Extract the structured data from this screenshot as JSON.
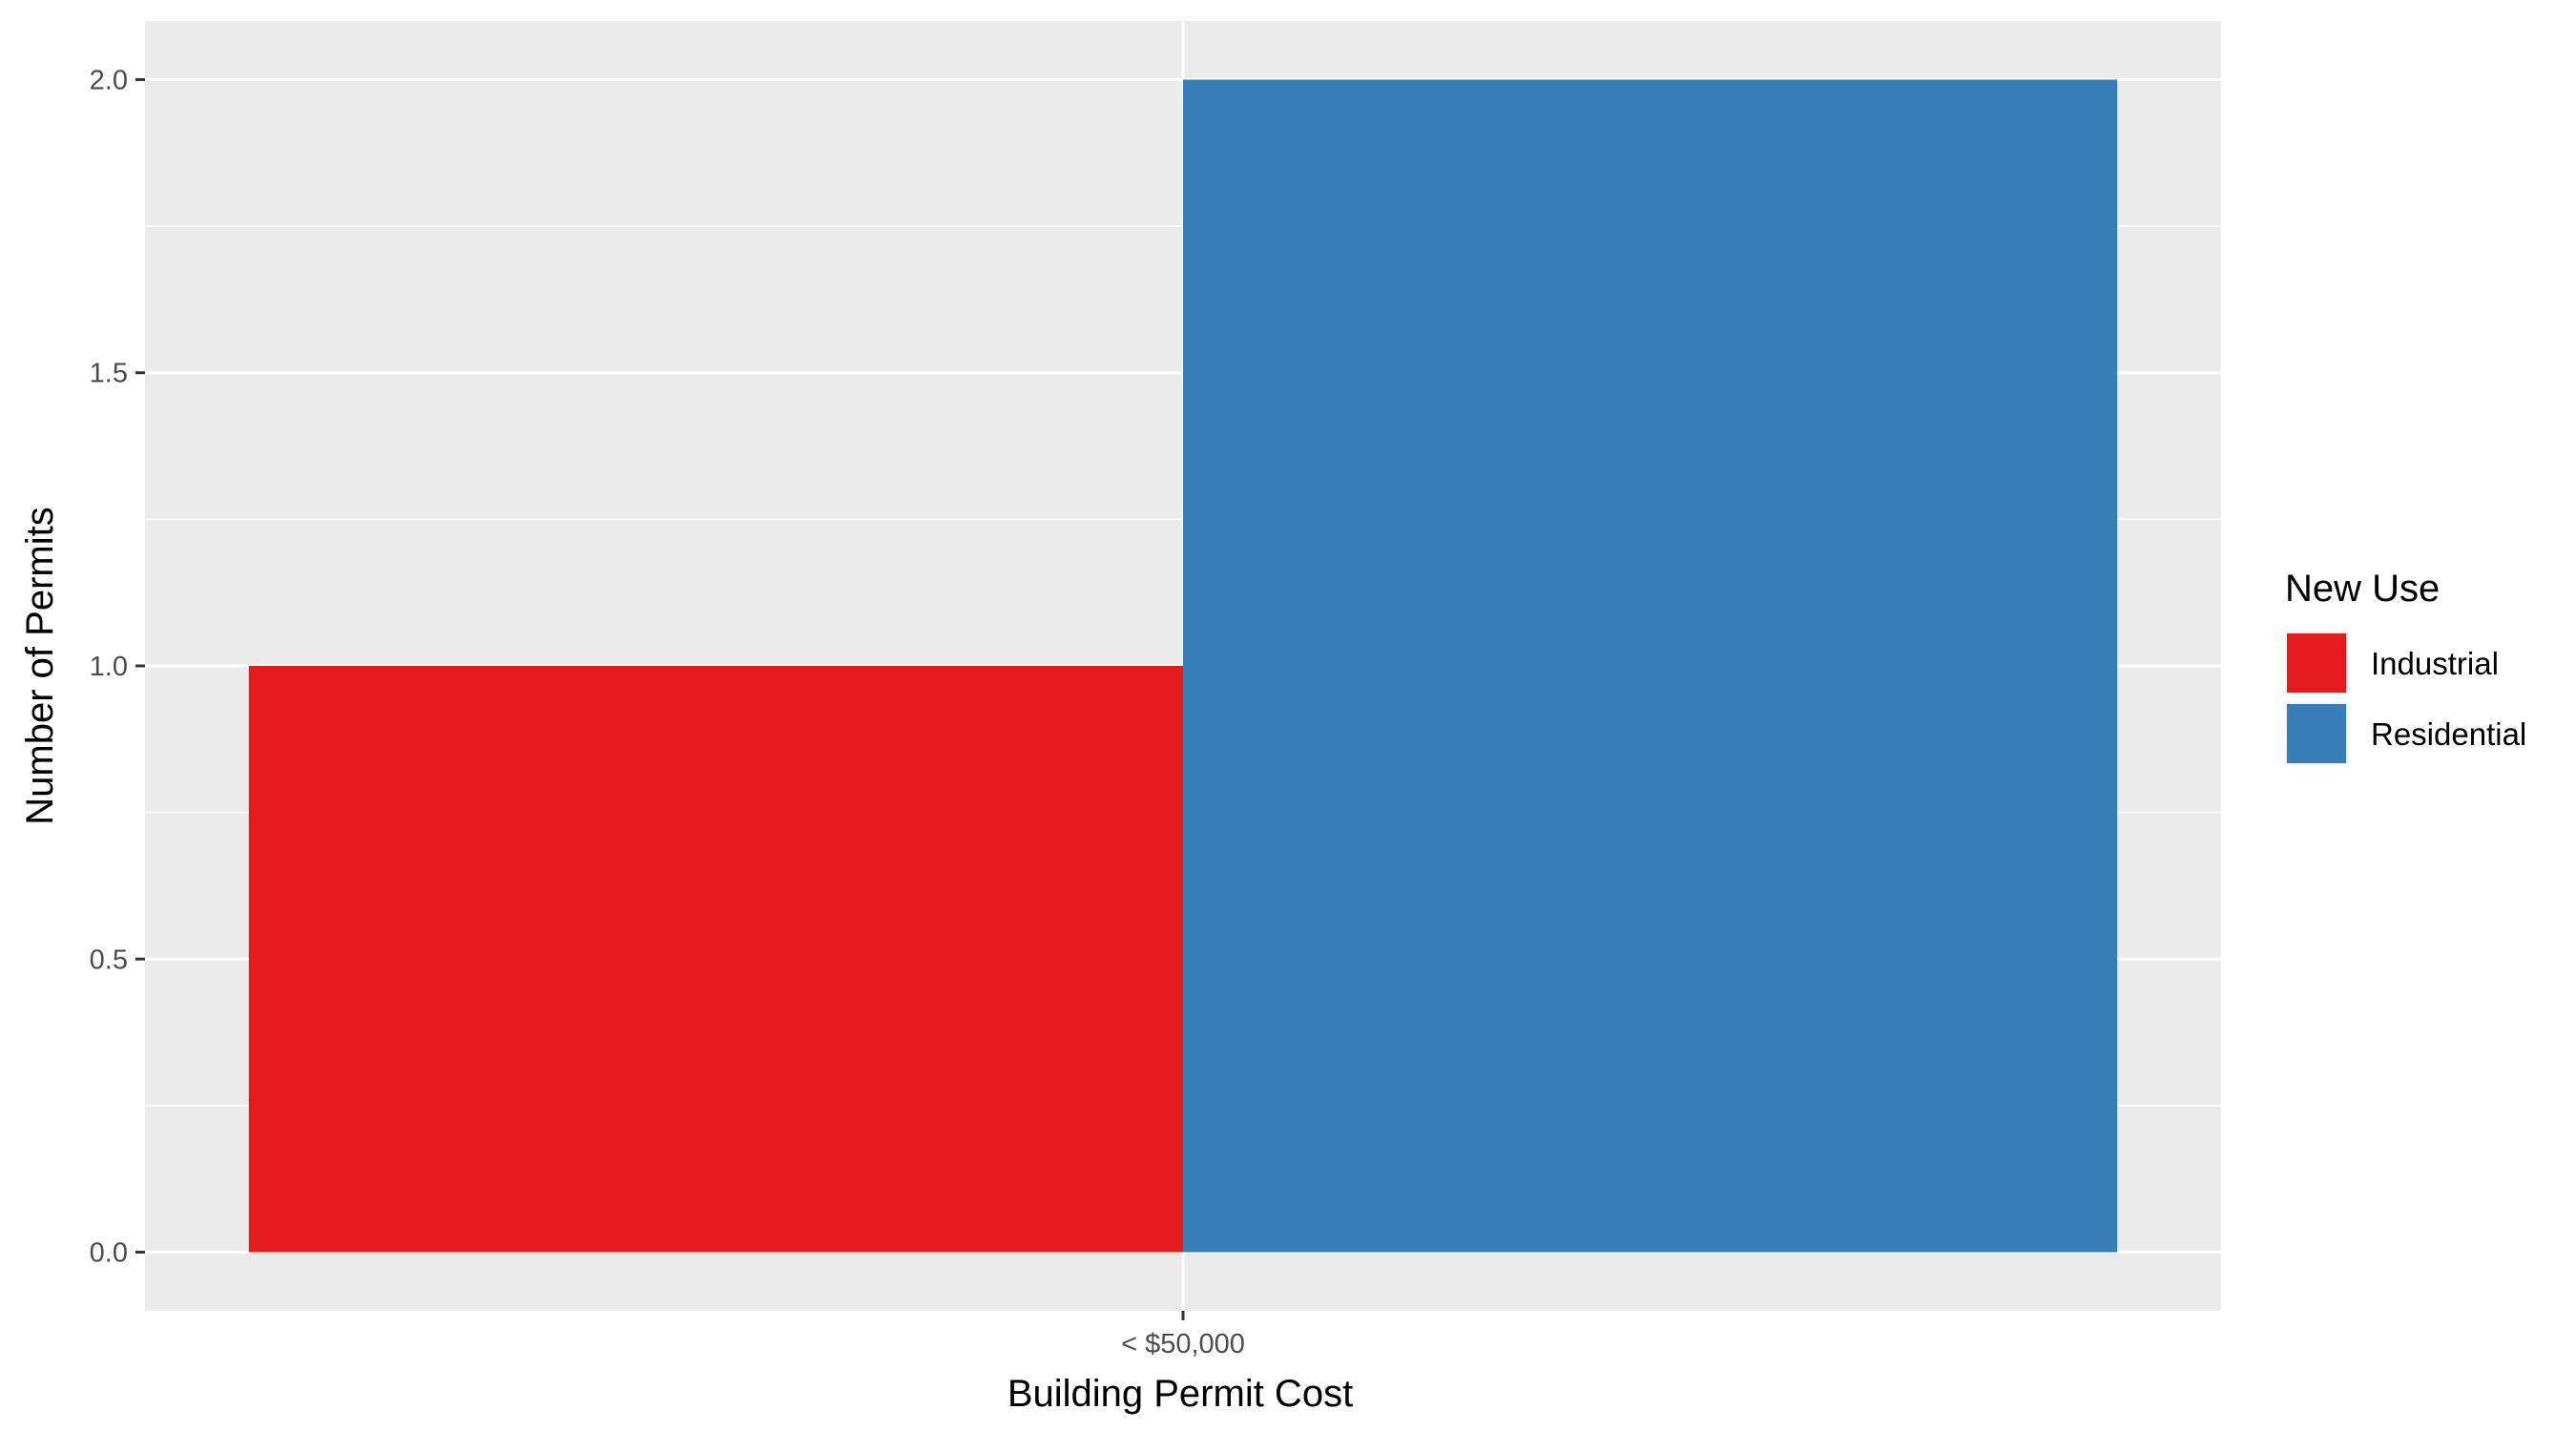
{
  "chart_data": {
    "type": "bar",
    "categories": [
      "< $50,000"
    ],
    "series": [
      {
        "name": "Industrial",
        "values": [
          1
        ],
        "color": "#E41A1C"
      },
      {
        "name": "Residential",
        "values": [
          2
        ],
        "color": "#377EB8"
      }
    ],
    "title": "",
    "xlabel": "Building Permit Cost",
    "ylabel": "Number of Permits",
    "ylim": [
      -0.1,
      2.1
    ],
    "yticks": [
      "0.0",
      "0.5",
      "1.0",
      "1.5",
      "2.0"
    ],
    "grid": true,
    "panel_background": "#EBEBEB",
    "gridline_color": "#FFFFFF",
    "legend": {
      "title": "New Use",
      "placement": "right",
      "items": [
        "Industrial",
        "Residential"
      ]
    }
  }
}
